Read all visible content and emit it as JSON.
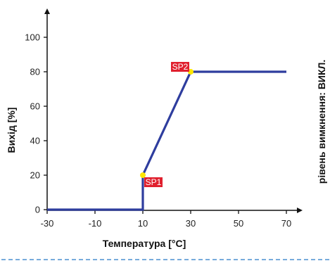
{
  "chart_data": {
    "type": "line",
    "xlabel": "Температура [°C]",
    "ylabel": "Вихід [%]",
    "right_label": "рівень вимкнення: ВИКЛ.",
    "x_ticks": [
      "-30",
      "-10",
      "10",
      "30",
      "50",
      "70"
    ],
    "x_tick_values": [
      -30,
      -10,
      10,
      30,
      50,
      70
    ],
    "y_ticks": [
      "0",
      "20",
      "40",
      "60",
      "80",
      "100"
    ],
    "y_tick_values": [
      0,
      20,
      40,
      60,
      80,
      100
    ],
    "xlim": [
      -30,
      80
    ],
    "ylim": [
      0,
      115
    ],
    "series": [
      {
        "x": [
          -30,
          10,
          10,
          30,
          70
        ],
        "y": [
          0,
          0,
          20,
          80,
          80
        ]
      }
    ],
    "annotations": [
      {
        "label": "SP1",
        "x": 10,
        "y": 20
      },
      {
        "label": "SP2",
        "x": 30,
        "y": 80
      }
    ],
    "colors": {
      "line": "#2e3d9e",
      "axis": "#111111",
      "marker": "#ffe600",
      "label_bg": "#e0202e",
      "dashed_rule": "#4a8fd0"
    }
  }
}
